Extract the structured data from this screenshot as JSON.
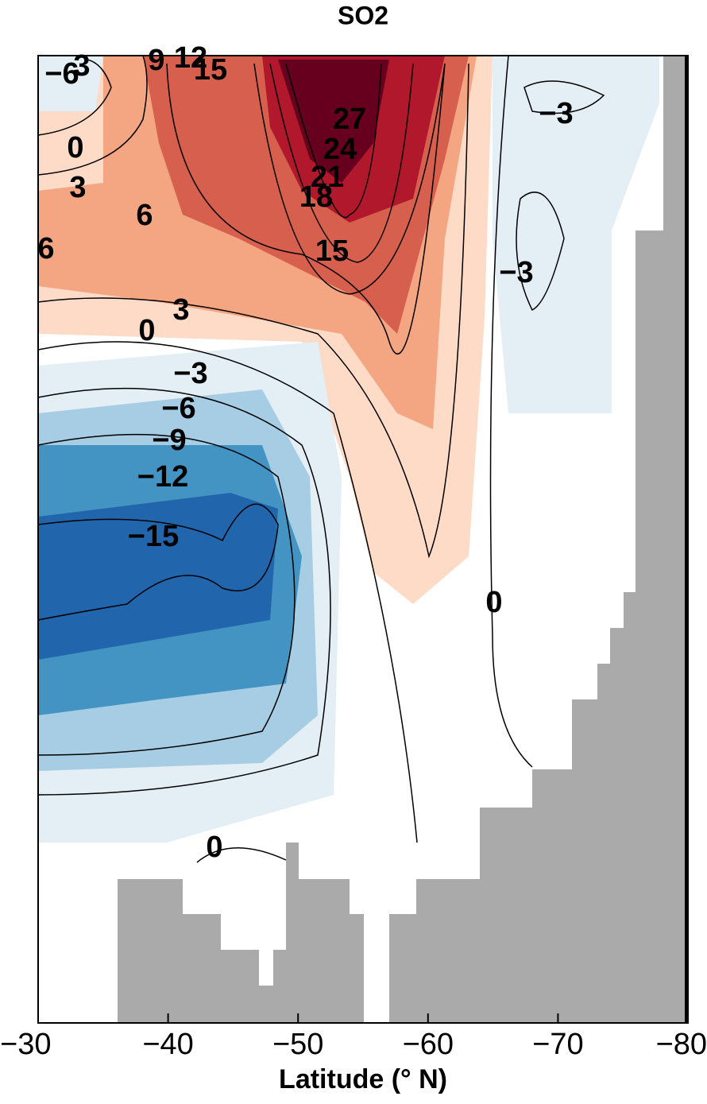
{
  "chart_data": {
    "type": "contour",
    "title": "SO2",
    "x_label": "Latitude (° N)",
    "xlim": [
      -30,
      -80
    ],
    "xticks": [
      {
        "value": -30,
        "label": "−30"
      },
      {
        "value": -40,
        "label": "−40"
      },
      {
        "value": -50,
        "label": "−50"
      },
      {
        "value": -60,
        "label": "−60"
      },
      {
        "value": -70,
        "label": "−70"
      },
      {
        "value": -80,
        "label": "−80"
      }
    ],
    "contour_labels": [
      "−6",
      "3",
      "9",
      "12",
      "15",
      "27",
      "24",
      "21",
      "18",
      "15",
      "0",
      "3",
      "6",
      "6",
      "3",
      "0",
      "−3",
      "−6",
      "−9",
      "−12",
      "−15",
      "0",
      "0",
      "−3",
      "−3"
    ]
  }
}
